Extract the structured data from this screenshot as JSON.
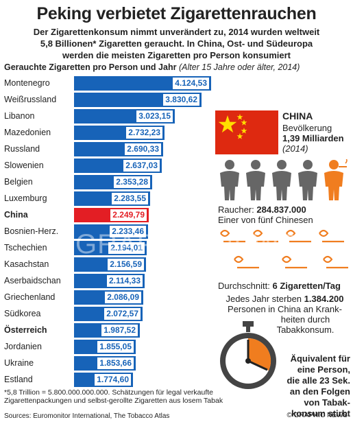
{
  "title": "Peking verbietet Zigarettenrauchen",
  "subtitle": [
    "Der Zigarettenkonsum nimmt unverändert zu, 2014 wurden weltweit",
    "5,8 Billionen* Zigaretten geraucht. In China, Ost- und Südeuropa",
    "werden die meisten Zigaretten pro Person konsumiert"
  ],
  "chart_heading": "Gerauchte Zigaretten pro Person und Jahr",
  "chart_heading_note": "(Alter 15 Jahre oder älter, 2014)",
  "chart_data": {
    "type": "bar",
    "orientation": "horizontal",
    "title": "Gerauchte Zigaretten pro Person und Jahr (Alter 15 Jahre oder älter, 2014)",
    "categories": [
      "Montenegro",
      "Weißrussland",
      "Libanon",
      "Mazedonien",
      "Russland",
      "Slowenien",
      "Belgien",
      "Luxemburg",
      "China",
      "Bosnien-Herz.",
      "Tschechien",
      "Kasachstan",
      "Aserbaidschan",
      "Griechenland",
      "Südkorea",
      "Österreich",
      "Jordanien",
      "Ukraine",
      "Estland"
    ],
    "values": [
      4124.53,
      3830.62,
      3023.15,
      2732.23,
      2690.33,
      2637.03,
      2353.28,
      2283.55,
      2249.79,
      2233.46,
      2194.01,
      2156.59,
      2114.33,
      2086.09,
      2072.57,
      1987.52,
      1855.05,
      1853.66,
      1774.6
    ],
    "labels": [
      "4.124,53",
      "3.830,62",
      "3.023,15",
      "2.732,23",
      "2.690,33",
      "2.637,03",
      "2.353,28",
      "2.283,55",
      "2.249,79",
      "2.233,46",
      "2.194,01",
      "2.156,59",
      "2.114,33",
      "2.086,09",
      "2.072,57",
      "1.987,52",
      "1.855,05",
      "1.853,66",
      "1.774,60"
    ],
    "highlight": "China",
    "bold_categories": [
      "China",
      "Österreich"
    ],
    "xlim": [
      0,
      4124.53
    ],
    "colors": {
      "bar": "#1763b8",
      "highlight": "#e31e24"
    }
  },
  "china": {
    "title": "CHINA",
    "population_label": "Bevölkerung",
    "population": "1,39 Milliarden",
    "year": "(2014)",
    "smokers_label": "Raucher:",
    "smokers": "284.837.000",
    "smokers_ratio": "Einer von fünf Chinesen",
    "average_label": "Durchschnitt:",
    "average": "6 Zigaretten/Tag",
    "deaths_pre": "Jedes Jahr sterben",
    "deaths": "1.384.200",
    "deaths_post": [
      "Personen in China an Krank-",
      "heiten durch",
      "Tabakkonsum."
    ],
    "equivalent": [
      "Äquivalent für",
      "eine Person,",
      "die alle 23 Sek.",
      "an den Folgen",
      "von Tabak-",
      "konsum stirbt"
    ],
    "colors": {
      "flag": "#de2910",
      "stars": "#ffde00",
      "person": "#666666",
      "smoker": "#f07d1f"
    },
    "icons": [
      "china-flag",
      "person-icon",
      "smoker-icon",
      "cigarette-icon",
      "stopwatch-icon"
    ]
  },
  "footnote": [
    "*5,8 Trillion = 5.800.000.000.000. Schätzungen für legal verkaufte",
    "Zigarettenpackungen und selbst-gerollte Zigaretten aus losem Tabak"
  ],
  "sources": "Sources: Euromonitor International, The Tobacco Atlas",
  "watermark": "GRAPHIC NEWS",
  "copyright": "© GRAPHIC NEWS"
}
